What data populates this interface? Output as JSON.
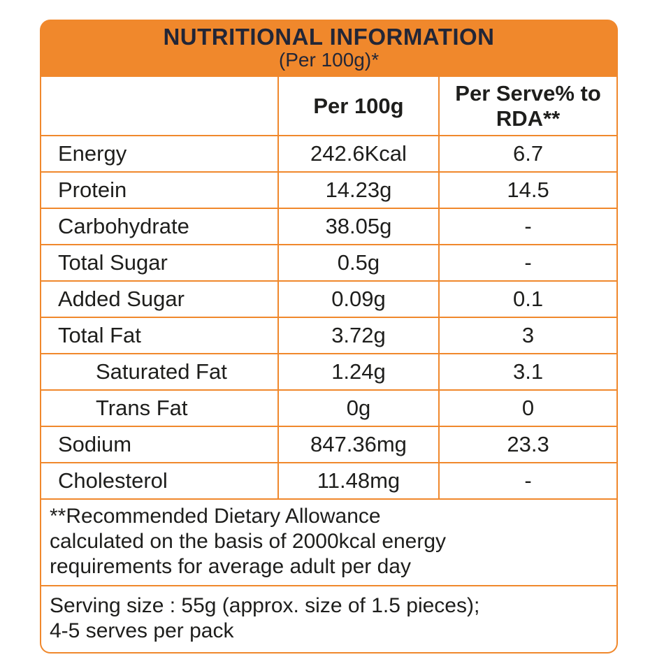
{
  "card": {
    "header": {
      "title": "NUTRITIONAL INFORMATION",
      "subtitle": "(Per 100g)*"
    },
    "table": {
      "columns": {
        "nutrient": "",
        "per100g": "Per 100g",
        "perServe": "Per Serve% to RDA**"
      },
      "rows": [
        {
          "name": "Energy",
          "per100g": "242.6Kcal",
          "perServe": "6.7"
        },
        {
          "name": "Protein",
          "per100g": "14.23g",
          "perServe": "14.5"
        },
        {
          "name": "Carbohydrate",
          "per100g": "38.05g",
          "perServe": "-"
        },
        {
          "name": "Total Sugar",
          "per100g": "0.5g",
          "perServe": "-"
        },
        {
          "name": "Added Sugar",
          "per100g": "0.09g",
          "perServe": "0.1"
        },
        {
          "name": "Total Fat",
          "per100g": "3.72g",
          "perServe": "3"
        },
        {
          "name": "Saturated Fat",
          "per100g": "1.24g",
          "perServe": "3.1"
        },
        {
          "name": "Trans Fat",
          "per100g": "0g",
          "perServe": "0"
        },
        {
          "name": "Sodium",
          "per100g": "847.36mg",
          "perServe": "23.3"
        },
        {
          "name": "Cholesterol",
          "per100g": "11.48mg",
          "perServe": "-"
        }
      ]
    },
    "notes": {
      "rda_lines": [
        "**Recommended Dietary Allowance",
        "calculated on the basis of 2000kcal energy",
        "requirements for average adult per day"
      ],
      "serving_lines": [
        "Serving size : 55g (approx. size of 1.5 pieces);",
        "4-5 serves per pack"
      ]
    },
    "colors": {
      "accent_orange": "#F0882C",
      "title_text": "#222637",
      "body_text": "#1E1E1C",
      "background": "#FFFFFF"
    }
  }
}
